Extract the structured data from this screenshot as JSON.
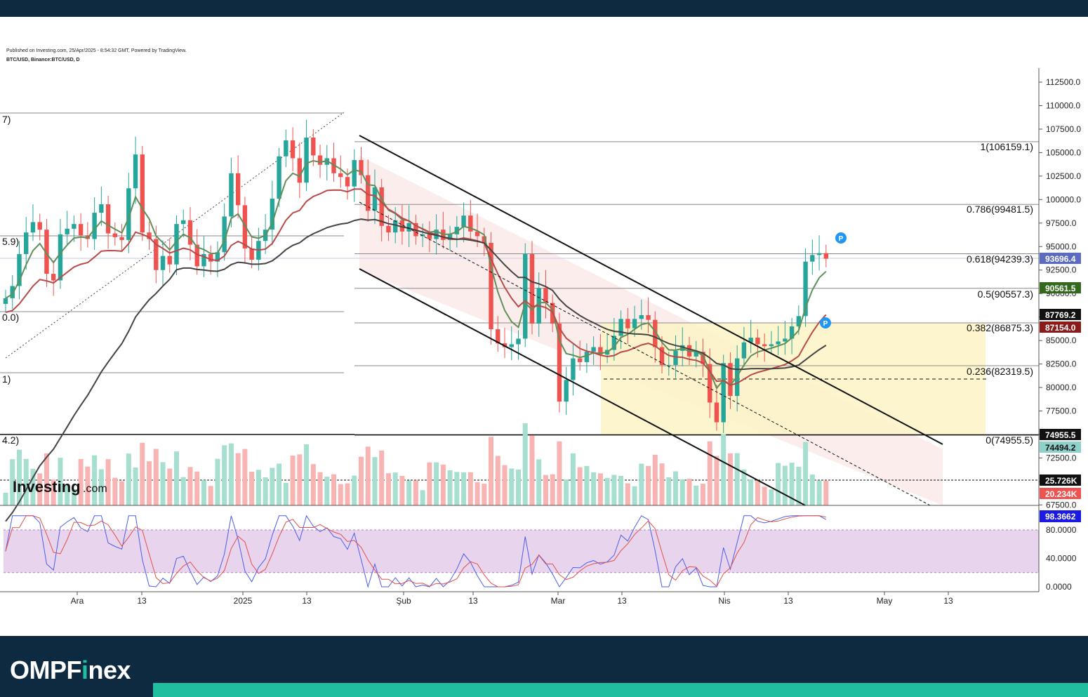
{
  "header": {
    "published": "Published on Investing.com, 25/Apr/2025 - 8:54:32 GMT, Powered by TradingView.",
    "symbol": "BTC/USD, Binance:BTC/USD, D"
  },
  "branding": {
    "investing_logo": "Investing",
    "investing_suffix": ".com",
    "footer_brand": "OMPFinex"
  },
  "colors": {
    "up": "#26a69a",
    "down": "#ef5350",
    "ema_fast": "#5f8f5a",
    "ema_slow": "#b84a48",
    "sma_long": "#444444",
    "stoch_k": "#4a5ee8",
    "stoch_d": "#e0504a",
    "brand_bg": "#0e2a41",
    "brand_accent": "#1fbfa0"
  },
  "chart_data": {
    "type": "candlestick",
    "title": "BTC/USD, Binance:BTC/USD, D",
    "y_axis": {
      "range": [
        66500,
        114000
      ],
      "ticks": [
        "112500.0",
        "110000.0",
        "107500.0",
        "105000.0",
        "102500.0",
        "100000.0",
        "97500.0",
        "95000.0",
        "92500.0",
        "90000.0",
        "87500.0",
        "85000.0",
        "82500.0",
        "80000.0",
        "77500.0",
        "75000.0",
        "72500.0",
        "70000.0",
        "67500.0"
      ],
      "tick_values": [
        112500,
        110000,
        107500,
        105000,
        102500,
        100000,
        97500,
        95000,
        92500,
        90000,
        87500,
        85000,
        82500,
        80000,
        77500,
        75000,
        72500,
        70000,
        67500
      ]
    },
    "x_axis": {
      "labels": [
        "Ara",
        "13",
        "2025",
        "13",
        "Şub",
        "13",
        "Mar",
        "13",
        "Nis",
        "13",
        "May",
        "13"
      ]
    },
    "fibonacci": [
      {
        "level": "1(106159.1)",
        "value": 106159.1
      },
      {
        "level": "0.786(99481.5)",
        "value": 99481.5
      },
      {
        "level": "0.618(94239.3)",
        "value": 94239.3
      },
      {
        "level": "0.5(90557.3)",
        "value": 90557.3
      },
      {
        "level": "0.382(86875.3)",
        "value": 86875.3
      },
      {
        "level": "0.236(82319.5)",
        "value": 82319.5
      },
      {
        "level": "0(74955.5)",
        "value": 74955.5
      }
    ],
    "old_fib_labels": [
      "7)",
      "5.9)",
      "0.0)",
      "1)",
      "4.2)"
    ],
    "price_tags": [
      {
        "label": "93696.4",
        "value": 93696.4,
        "color": "#5c6bc0"
      },
      {
        "label": "90561.5",
        "value": 90561.5,
        "color": "#33691e"
      },
      {
        "label": "87769.2",
        "value": 87769.2,
        "color": "#111111"
      },
      {
        "label": "87154.0",
        "value": 87154.0,
        "color": "#8b1a1a"
      },
      {
        "label": "74955.5",
        "value": 74955.5,
        "color": "#111111"
      },
      {
        "label": "74494.2",
        "value": 74494.2,
        "color": "#8fd0c8"
      },
      {
        "label": "25.726K",
        "value": "25.726K",
        "color": "#111111"
      },
      {
        "label": "20.234K",
        "value": "20.234K",
        "color": "#ef5350"
      }
    ],
    "closes": [
      89500,
      90800,
      94200,
      96500,
      97600,
      96800,
      92100,
      91400,
      96300,
      96900,
      97400,
      96200,
      95800,
      98600,
      99500,
      96400,
      96000,
      95700,
      101200,
      104800,
      96500,
      95800,
      92500,
      94000,
      93100,
      97400,
      97800,
      95200,
      92900,
      94200,
      93400,
      94400,
      98200,
      102800,
      99400,
      94800,
      93600,
      95600,
      96800,
      100100,
      104600,
      106300,
      104400,
      101800,
      106600,
      104700,
      103700,
      104400,
      102800,
      102400,
      101400,
      104200,
      102600,
      98800,
      101300,
      97200,
      96500,
      97800,
      96600,
      97500,
      96100,
      96300,
      95800,
      96800,
      95700,
      96300,
      97100,
      98300,
      96600,
      96100,
      95400,
      86200,
      84700,
      84300,
      84600,
      85200,
      94200,
      86800,
      90600,
      89000,
      86800,
      78500,
      80800,
      83100,
      82700,
      83800,
      84300,
      83500,
      84000,
      85500,
      87300,
      86300,
      87300,
      87700,
      87200,
      84300,
      82400,
      82400,
      83900,
      84500,
      83300,
      83800,
      82500,
      78400,
      76300,
      82600,
      79100,
      83100,
      84800,
      85300,
      84600,
      84400,
      84600,
      84900,
      85200,
      86500,
      87600,
      93400,
      94100,
      94300,
      93700
    ],
    "stochastic": {
      "ticks": [
        "80.0000",
        "40.0000",
        "0.0000"
      ],
      "tick_values": [
        80,
        40,
        0
      ],
      "band": [
        20,
        80
      ],
      "current": "98.3662"
    },
    "annotations": [
      "P",
      "P"
    ]
  }
}
